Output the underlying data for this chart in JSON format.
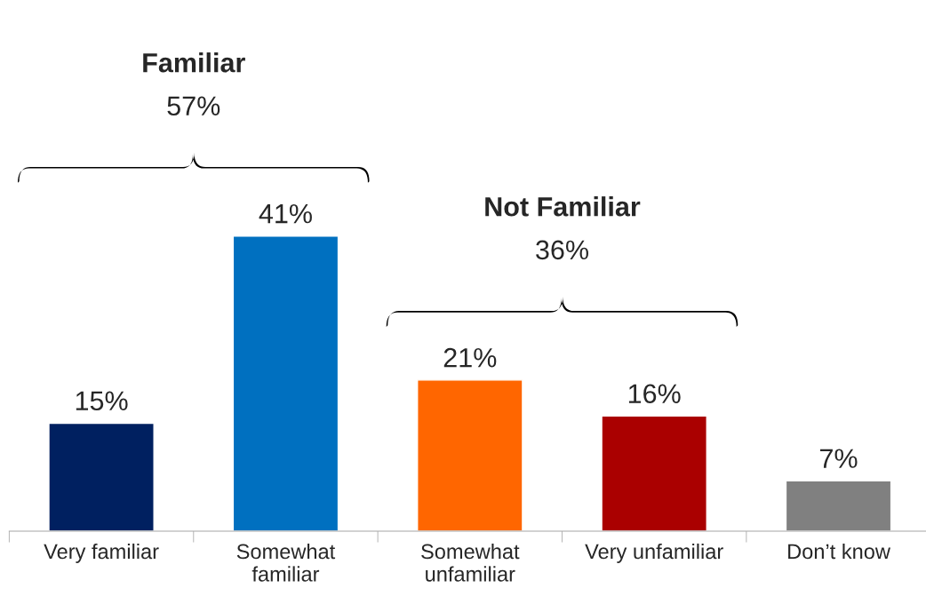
{
  "chart_data": {
    "type": "bar",
    "categories": [
      "Very familiar",
      "Somewhat familiar",
      "Somewhat unfamiliar",
      "Very unfamiliar",
      "Don’t know"
    ],
    "values": [
      15,
      41,
      21,
      16,
      7
    ],
    "colors": [
      "#002060",
      "#0070c0",
      "#ff6600",
      "#aa0000",
      "#808080"
    ],
    "value_labels": [
      "15%",
      "41%",
      "21%",
      "16%",
      "7%"
    ],
    "annotations": [
      "Familiar",
      "57%",
      "Not Familiar",
      "36%"
    ],
    "grid": false,
    "legend": false
  }
}
